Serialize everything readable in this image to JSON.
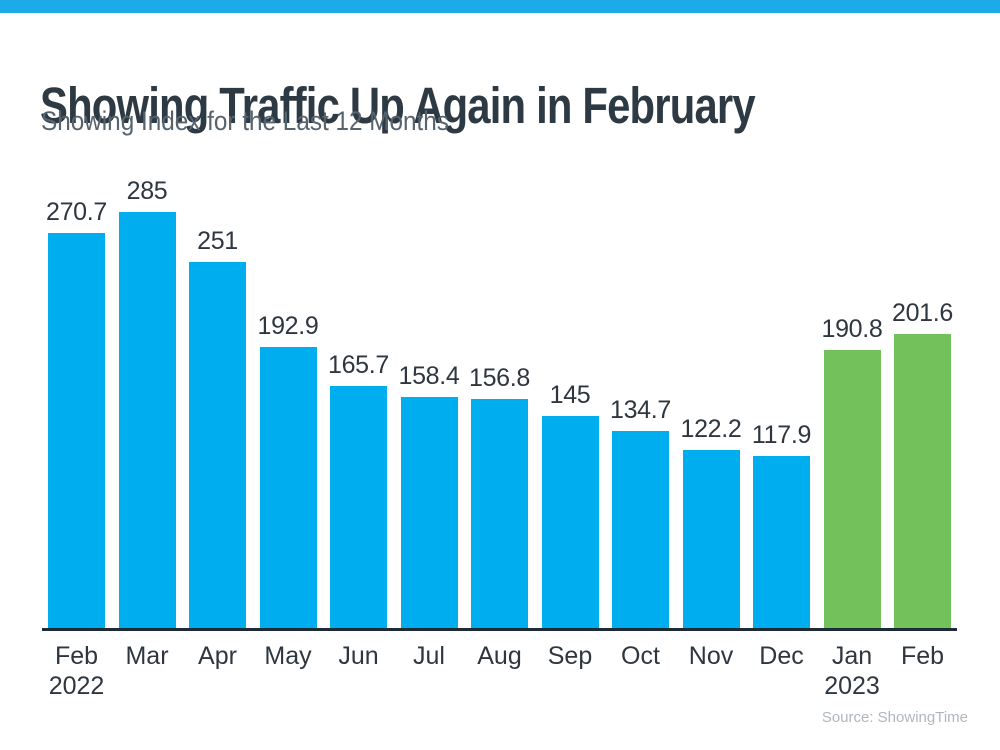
{
  "colors": {
    "accent_strip": "#1CABE8",
    "bar_blue": "#00AEEF",
    "bar_green": "#72C15A",
    "axis_line": "#1D2B36",
    "title_text": "#2E3A43",
    "subtitle_text": "#57646D",
    "label_text": "#2E3740",
    "source_text": "#AEB7BF"
  },
  "chart_data": {
    "type": "bar",
    "title": "Showing Traffic Up Again in February",
    "subtitle": "Showing Index for the Last 12 Months",
    "xlabel": "",
    "ylabel": "",
    "value_axis_hidden": true,
    "grid": false,
    "legend": false,
    "value_labels_shown": true,
    "categories": [
      "Feb 2022",
      "Mar",
      "Apr",
      "May",
      "Jun",
      "Jul",
      "Aug",
      "Sep",
      "Oct",
      "Nov",
      "Dec",
      "Jan 2023",
      "Feb"
    ],
    "values": [
      270.7,
      285,
      251,
      192.9,
      165.7,
      158.4,
      156.8,
      145,
      134.7,
      122.2,
      117.9,
      190.8,
      201.6
    ],
    "bars": [
      {
        "month": "Feb",
        "year": "2022",
        "value": 270.7,
        "color_key": "bar_blue"
      },
      {
        "month": "Mar",
        "year": "",
        "value": 285,
        "color_key": "bar_blue"
      },
      {
        "month": "Apr",
        "year": "",
        "value": 251,
        "color_key": "bar_blue"
      },
      {
        "month": "May",
        "year": "",
        "value": 192.9,
        "color_key": "bar_blue"
      },
      {
        "month": "Jun",
        "year": "",
        "value": 165.7,
        "color_key": "bar_blue"
      },
      {
        "month": "Jul",
        "year": "",
        "value": 158.4,
        "color_key": "bar_blue"
      },
      {
        "month": "Aug",
        "year": "",
        "value": 156.8,
        "color_key": "bar_blue"
      },
      {
        "month": "Sep",
        "year": "",
        "value": 145,
        "color_key": "bar_blue"
      },
      {
        "month": "Oct",
        "year": "",
        "value": 134.7,
        "color_key": "bar_blue"
      },
      {
        "month": "Nov",
        "year": "",
        "value": 122.2,
        "color_key": "bar_blue"
      },
      {
        "month": "Dec",
        "year": "",
        "value": 117.9,
        "color_key": "bar_blue"
      },
      {
        "month": "Jan",
        "year": "2023",
        "value": 190.8,
        "color_key": "bar_green"
      },
      {
        "month": "Feb",
        "year": "",
        "value": 201.6,
        "color_key": "bar_green"
      }
    ],
    "source": "Source: ShowingTime"
  }
}
